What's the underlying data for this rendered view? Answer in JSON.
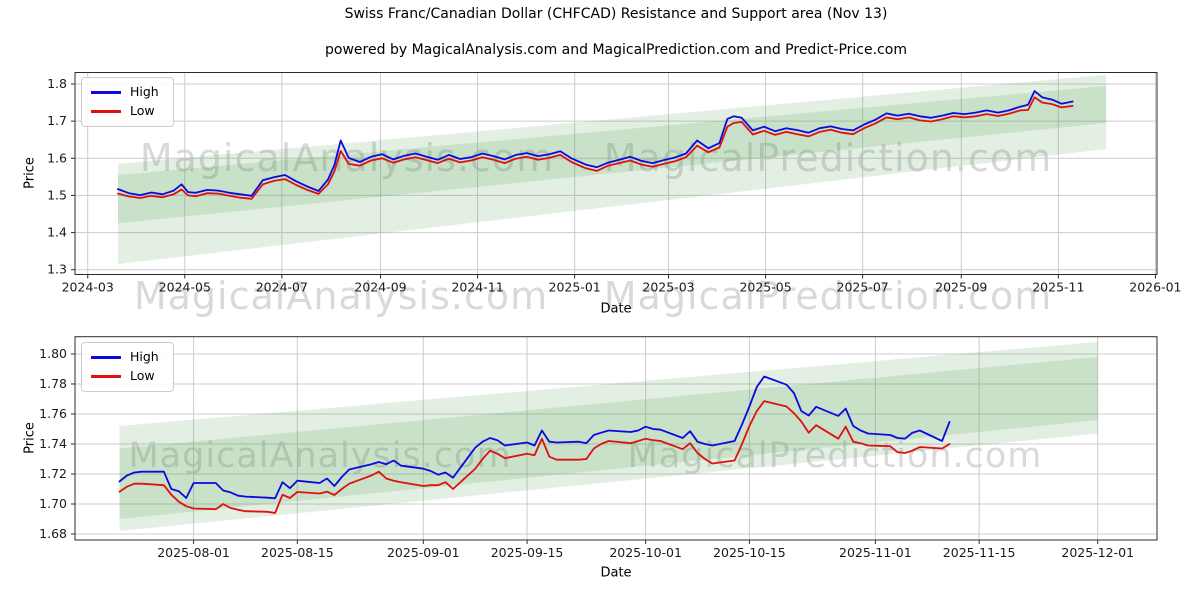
{
  "header": {
    "title": "Swiss Franc/Canadian Dollar (CHFCAD) Resistance and Support area (Nov 13)",
    "subtitle": "powered by MagicalAnalysis.com and MagicalPrediction.com and Predict-Price.com"
  },
  "watermark": {
    "left": "MagicalAnalysis.com",
    "right": "MagicalPrediction.com"
  },
  "colors": {
    "high_line": "#0a0adf",
    "low_line": "#e01010",
    "band": "#4a9a4a",
    "grid": "#cccccc",
    "spine": "#2b2b2b",
    "watermark": "#a6a6a6"
  },
  "chart_data": [
    {
      "type": "line",
      "name": "long-term",
      "xlabel": "Date",
      "ylabel": "Price",
      "legend": {
        "high": "High",
        "low": "Low"
      },
      "legend_position": "upper-left",
      "grid": true,
      "xlim": [
        "2024-02-22",
        "2026-01-02"
      ],
      "ylim": [
        1.2871,
        1.831
      ],
      "x_ticks": [
        {
          "label": "2024-03",
          "date": "2024-03-01"
        },
        {
          "label": "2024-05",
          "date": "2024-05-01"
        },
        {
          "label": "2024-07",
          "date": "2024-07-01"
        },
        {
          "label": "2024-09",
          "date": "2024-09-01"
        },
        {
          "label": "2024-11",
          "date": "2024-11-01"
        },
        {
          "label": "2025-01",
          "date": "2025-01-01"
        },
        {
          "label": "2025-03",
          "date": "2025-03-01"
        },
        {
          "label": "2025-05",
          "date": "2025-05-01"
        },
        {
          "label": "2025-07",
          "date": "2025-07-01"
        },
        {
          "label": "2025-09",
          "date": "2025-09-01"
        },
        {
          "label": "2025-11",
          "date": "2025-11-01"
        },
        {
          "label": "2026-01",
          "date": "2026-01-01"
        }
      ],
      "y_ticks": [
        {
          "label": "1.8",
          "value": 1.8
        },
        {
          "label": "1.7",
          "value": 1.7
        },
        {
          "label": "1.6",
          "value": 1.6
        },
        {
          "label": "1.5",
          "value": 1.5
        },
        {
          "label": "1.4",
          "value": 1.4
        },
        {
          "label": "1.3",
          "value": 1.3
        }
      ],
      "bands": {
        "x0": "2024-03-20",
        "x1": "2025-12-01",
        "lower": {
          "start": [
            1.315,
            1.555
          ],
          "end": [
            1.625,
            1.795
          ]
        },
        "upper": {
          "start": [
            1.425,
            1.585
          ],
          "end": [
            1.695,
            1.825
          ]
        }
      },
      "dates": [
        "2024-03-20",
        "2024-03-27",
        "2024-04-03",
        "2024-04-10",
        "2024-04-17",
        "2024-04-24",
        "2024-04-29",
        "2024-05-03",
        "2024-05-08",
        "2024-05-15",
        "2024-05-22",
        "2024-05-29",
        "2024-06-05",
        "2024-06-12",
        "2024-06-19",
        "2024-06-26",
        "2024-07-03",
        "2024-07-10",
        "2024-07-17",
        "2024-07-24",
        "2024-07-30",
        "2024-08-03",
        "2024-08-07",
        "2024-08-12",
        "2024-08-19",
        "2024-08-26",
        "2024-09-02",
        "2024-09-09",
        "2024-09-16",
        "2024-09-23",
        "2024-09-30",
        "2024-10-07",
        "2024-10-14",
        "2024-10-21",
        "2024-10-28",
        "2024-11-04",
        "2024-11-11",
        "2024-11-18",
        "2024-11-25",
        "2024-12-02",
        "2024-12-09",
        "2024-12-16",
        "2024-12-23",
        "2024-12-30",
        "2025-01-08",
        "2025-01-15",
        "2025-01-22",
        "2025-01-29",
        "2025-02-05",
        "2025-02-12",
        "2025-02-19",
        "2025-02-26",
        "2025-03-05",
        "2025-03-12",
        "2025-03-19",
        "2025-03-26",
        "2025-04-02",
        "2025-04-07",
        "2025-04-11",
        "2025-04-16",
        "2025-04-23",
        "2025-04-30",
        "2025-05-07",
        "2025-05-14",
        "2025-05-21",
        "2025-05-28",
        "2025-06-04",
        "2025-06-11",
        "2025-06-18",
        "2025-06-25",
        "2025-07-02",
        "2025-07-09",
        "2025-07-16",
        "2025-07-23",
        "2025-07-30",
        "2025-08-06",
        "2025-08-13",
        "2025-08-20",
        "2025-08-27",
        "2025-09-03",
        "2025-09-10",
        "2025-09-17",
        "2025-09-24",
        "2025-10-01",
        "2025-10-08",
        "2025-10-13",
        "2025-10-17",
        "2025-10-22",
        "2025-10-28",
        "2025-11-03",
        "2025-11-10"
      ],
      "high": [
        1.517,
        1.506,
        1.501,
        1.508,
        1.503,
        1.513,
        1.53,
        1.509,
        1.507,
        1.515,
        1.513,
        1.507,
        1.503,
        1.499,
        1.541,
        1.549,
        1.555,
        1.538,
        1.524,
        1.512,
        1.543,
        1.582,
        1.648,
        1.601,
        1.59,
        1.604,
        1.611,
        1.597,
        1.607,
        1.613,
        1.604,
        1.596,
        1.609,
        1.598,
        1.603,
        1.613,
        1.606,
        1.597,
        1.609,
        1.614,
        1.606,
        1.611,
        1.619,
        1.6,
        1.583,
        1.576,
        1.588,
        1.596,
        1.604,
        1.593,
        1.587,
        1.595,
        1.602,
        1.613,
        1.648,
        1.627,
        1.641,
        1.706,
        1.713,
        1.709,
        1.675,
        1.685,
        1.673,
        1.681,
        1.676,
        1.669,
        1.681,
        1.686,
        1.679,
        1.675,
        1.691,
        1.704,
        1.721,
        1.715,
        1.72,
        1.713,
        1.709,
        1.715,
        1.722,
        1.719,
        1.723,
        1.729,
        1.723,
        1.729,
        1.739,
        1.744,
        1.781,
        1.764,
        1.758,
        1.747,
        1.753
      ],
      "low": [
        1.505,
        1.497,
        1.493,
        1.499,
        1.495,
        1.503,
        1.516,
        1.5,
        1.498,
        1.506,
        1.505,
        1.499,
        1.494,
        1.491,
        1.53,
        1.539,
        1.544,
        1.528,
        1.515,
        1.504,
        1.53,
        1.565,
        1.62,
        1.585,
        1.58,
        1.594,
        1.6,
        1.588,
        1.597,
        1.603,
        1.595,
        1.587,
        1.599,
        1.589,
        1.594,
        1.603,
        1.596,
        1.587,
        1.599,
        1.604,
        1.596,
        1.601,
        1.609,
        1.59,
        1.573,
        1.566,
        1.58,
        1.587,
        1.594,
        1.583,
        1.577,
        1.585,
        1.592,
        1.603,
        1.634,
        1.616,
        1.629,
        1.685,
        1.695,
        1.698,
        1.664,
        1.674,
        1.663,
        1.671,
        1.665,
        1.659,
        1.671,
        1.677,
        1.669,
        1.665,
        1.681,
        1.694,
        1.71,
        1.705,
        1.71,
        1.702,
        1.699,
        1.705,
        1.713,
        1.71,
        1.713,
        1.719,
        1.714,
        1.72,
        1.729,
        1.73,
        1.764,
        1.75,
        1.746,
        1.737,
        1.741
      ]
    },
    {
      "type": "line",
      "name": "short-term",
      "xlabel": "Date",
      "ylabel": "Price",
      "legend": {
        "high": "High",
        "low": "Low"
      },
      "legend_position": "upper-left",
      "grid": true,
      "xlim": [
        "2025-07-16",
        "2025-12-09"
      ],
      "ylim": [
        1.676,
        1.8115
      ],
      "x_ticks": [
        {
          "label": "2025-08-01",
          "date": "2025-08-01"
        },
        {
          "label": "2025-08-15",
          "date": "2025-08-15"
        },
        {
          "label": "2025-09-01",
          "date": "2025-09-01"
        },
        {
          "label": "2025-09-15",
          "date": "2025-09-15"
        },
        {
          "label": "2025-10-01",
          "date": "2025-10-01"
        },
        {
          "label": "2025-10-15",
          "date": "2025-10-15"
        },
        {
          "label": "2025-11-01",
          "date": "2025-11-01"
        },
        {
          "label": "2025-11-15",
          "date": "2025-11-15"
        },
        {
          "label": "2025-12-01",
          "date": "2025-12-01"
        }
      ],
      "y_ticks": [
        {
          "label": "1.80",
          "value": 1.8
        },
        {
          "label": "1.78",
          "value": 1.78
        },
        {
          "label": "1.76",
          "value": 1.76
        },
        {
          "label": "1.74",
          "value": 1.74
        },
        {
          "label": "1.72",
          "value": 1.72
        },
        {
          "label": "1.70",
          "value": 1.7
        },
        {
          "label": "1.68",
          "value": 1.68
        }
      ],
      "bands": {
        "x0": "2025-07-22",
        "x1": "2025-12-01",
        "lower": {
          "start": [
            1.682,
            1.737
          ],
          "end": [
            1.747,
            1.798
          ]
        },
        "upper": {
          "start": [
            1.69,
            1.752
          ],
          "end": [
            1.756,
            1.808
          ]
        }
      },
      "dates": [
        "2025-07-22",
        "2025-07-23",
        "2025-07-24",
        "2025-07-25",
        "2025-07-28",
        "2025-07-29",
        "2025-07-30",
        "2025-07-31",
        "2025-08-01",
        "2025-08-04",
        "2025-08-05",
        "2025-08-06",
        "2025-08-07",
        "2025-08-08",
        "2025-08-11",
        "2025-08-12",
        "2025-08-13",
        "2025-08-14",
        "2025-08-15",
        "2025-08-18",
        "2025-08-19",
        "2025-08-20",
        "2025-08-21",
        "2025-08-22",
        "2025-08-25",
        "2025-08-26",
        "2025-08-27",
        "2025-08-28",
        "2025-08-29",
        "2025-09-01",
        "2025-09-02",
        "2025-09-03",
        "2025-09-04",
        "2025-09-05",
        "2025-09-08",
        "2025-09-09",
        "2025-09-10",
        "2025-09-11",
        "2025-09-12",
        "2025-09-15",
        "2025-09-16",
        "2025-09-17",
        "2025-09-18",
        "2025-09-19",
        "2025-09-22",
        "2025-09-23",
        "2025-09-24",
        "2025-09-25",
        "2025-09-26",
        "2025-09-29",
        "2025-09-30",
        "2025-10-01",
        "2025-10-02",
        "2025-10-03",
        "2025-10-06",
        "2025-10-07",
        "2025-10-08",
        "2025-10-09",
        "2025-10-10",
        "2025-10-13",
        "2025-10-14",
        "2025-10-15",
        "2025-10-16",
        "2025-10-17",
        "2025-10-20",
        "2025-10-21",
        "2025-10-22",
        "2025-10-23",
        "2025-10-24",
        "2025-10-27",
        "2025-10-28",
        "2025-10-29",
        "2025-10-30",
        "2025-10-31",
        "2025-11-03",
        "2025-11-04",
        "2025-11-05",
        "2025-11-06",
        "2025-11-07",
        "2025-11-10",
        "2025-11-11"
      ],
      "high": [
        1.715,
        1.719,
        1.721,
        1.7215,
        1.7215,
        1.71,
        1.7085,
        1.704,
        1.714,
        1.714,
        1.709,
        1.7077,
        1.7055,
        1.7049,
        1.7042,
        1.7038,
        1.7145,
        1.7105,
        1.7155,
        1.714,
        1.717,
        1.712,
        1.718,
        1.723,
        1.7265,
        1.728,
        1.7265,
        1.729,
        1.7255,
        1.7235,
        1.722,
        1.7195,
        1.721,
        1.7175,
        1.7375,
        1.7415,
        1.744,
        1.7425,
        1.739,
        1.741,
        1.739,
        1.749,
        1.7415,
        1.741,
        1.7415,
        1.7405,
        1.746,
        1.7475,
        1.749,
        1.748,
        1.749,
        1.7515,
        1.75,
        1.7495,
        1.744,
        1.7485,
        1.7415,
        1.74,
        1.739,
        1.742,
        1.753,
        1.765,
        1.778,
        1.785,
        1.7795,
        1.774,
        1.762,
        1.759,
        1.7648,
        1.7587,
        1.7636,
        1.752,
        1.749,
        1.747,
        1.746,
        1.744,
        1.7435,
        1.7475,
        1.749,
        1.742,
        1.7547
      ],
      "low": [
        1.7082,
        1.7115,
        1.7135,
        1.7135,
        1.7125,
        1.7062,
        1.7015,
        1.6985,
        1.697,
        1.6965,
        1.7,
        1.6973,
        1.6962,
        1.6952,
        1.6948,
        1.694,
        1.7062,
        1.704,
        1.708,
        1.707,
        1.7082,
        1.706,
        1.71,
        1.7135,
        1.719,
        1.7215,
        1.717,
        1.7155,
        1.7145,
        1.712,
        1.7125,
        1.7125,
        1.7145,
        1.71,
        1.7235,
        1.73,
        1.7355,
        1.7335,
        1.7305,
        1.7335,
        1.7325,
        1.7435,
        1.7315,
        1.7295,
        1.7295,
        1.73,
        1.737,
        1.74,
        1.742,
        1.7405,
        1.742,
        1.7435,
        1.7425,
        1.742,
        1.7365,
        1.7405,
        1.734,
        1.73,
        1.727,
        1.729,
        1.74,
        1.752,
        1.762,
        1.7686,
        1.765,
        1.7605,
        1.755,
        1.7475,
        1.7525,
        1.7435,
        1.7515,
        1.7415,
        1.7405,
        1.739,
        1.7385,
        1.7345,
        1.734,
        1.7355,
        1.738,
        1.737,
        1.74
      ]
    }
  ]
}
